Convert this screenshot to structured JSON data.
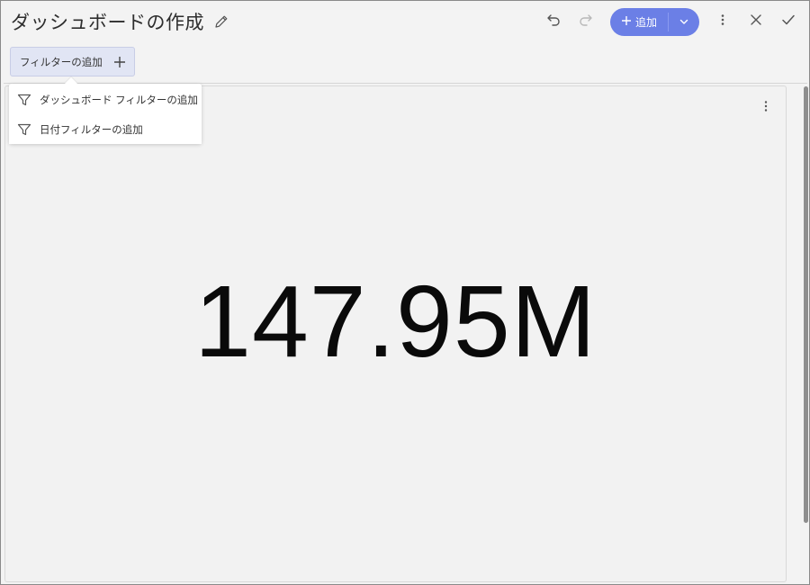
{
  "header": {
    "title": "ダッシュボードの作成",
    "add_label": "追加"
  },
  "filter_bar": {
    "chip_label": "フィルターの追加"
  },
  "menu": {
    "items": [
      {
        "label": "ダッシュボード フィルターの追加",
        "icon": "filter-icon"
      },
      {
        "label": "日付フィルターの追加",
        "icon": "filter-icon"
      }
    ]
  },
  "widget": {
    "kpi_value": "147.95M"
  },
  "colors": {
    "accent": "#6b7fe6",
    "chip_bg": "#e1e5f4",
    "background": "#f3f3f3"
  }
}
